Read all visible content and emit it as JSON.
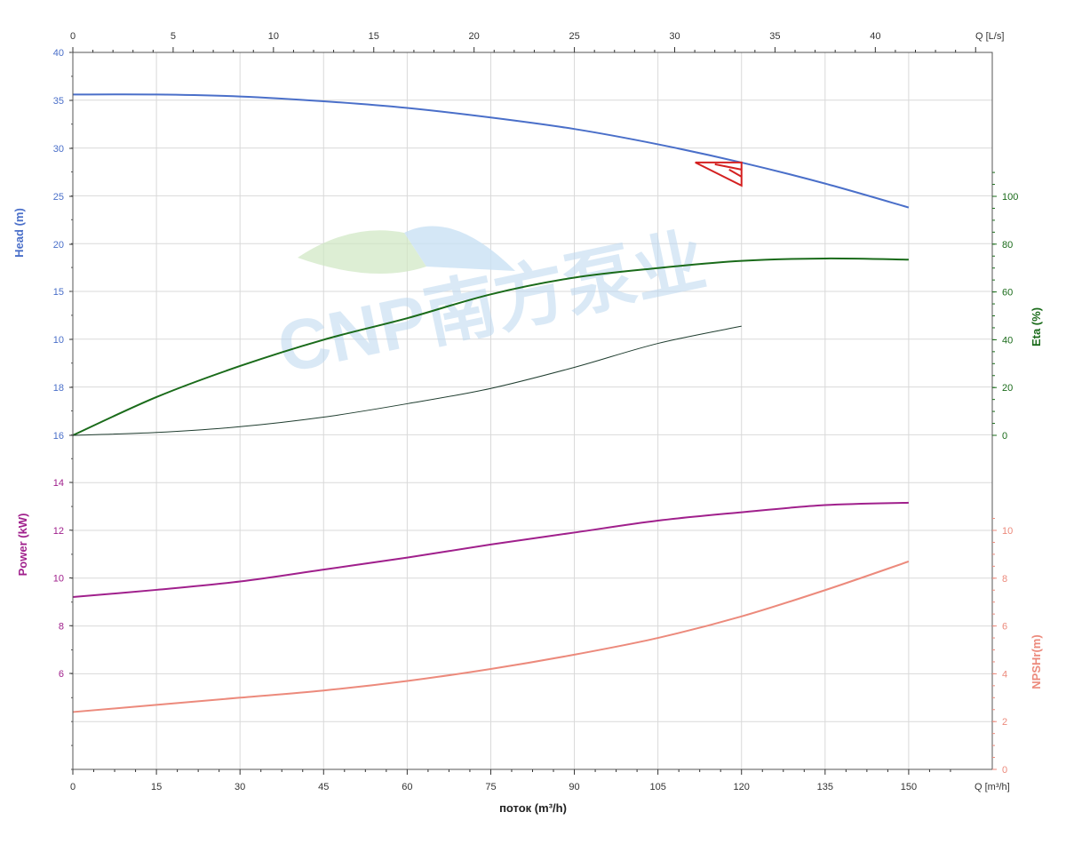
{
  "chart_data": {
    "type": "line",
    "xlabel": "поток (m³/h)",
    "x_bottom": {
      "unit_label": "Q [m³/h]",
      "range": [
        0,
        165
      ],
      "ticks": [
        0,
        15,
        30,
        45,
        60,
        75,
        90,
        105,
        120,
        135,
        150
      ]
    },
    "x_top": {
      "unit_label": "Q [L/s]",
      "range": [
        0,
        45.83
      ],
      "ticks": [
        0,
        5,
        10,
        15,
        20,
        25,
        30,
        35,
        40
      ]
    },
    "left_axis_labels": {
      "head": "Head (m)",
      "power": "Power (kW)"
    },
    "right_axis_labels": {
      "eta": "Eta (%)",
      "npsh": "NPSHr(m)"
    },
    "head_ticks": [
      16,
      18,
      10,
      15,
      20,
      25,
      30,
      35,
      40
    ],
    "power_ticks": [
      6,
      8,
      10,
      12,
      14
    ],
    "eta_ticks": [
      0,
      20,
      40,
      60,
      80,
      100
    ],
    "npsh_ticks": [
      0,
      2,
      4,
      6,
      8,
      10
    ],
    "colors": {
      "head": "#4a6fc9",
      "eta": "#1a6b1a",
      "system": "#1f3d2f",
      "power": "#a0208c",
      "npsh": "#ec8a7c",
      "duty_point": "#d42020",
      "grid": "#d9d9d9",
      "watermark": "#bcd8ef"
    },
    "watermark_text": "CNP南方泵业",
    "series": [
      {
        "name": "Head",
        "axis": "head",
        "x": [
          0,
          15,
          30,
          45,
          60,
          75,
          90,
          105,
          120,
          135,
          150
        ],
        "values": [
          35.6,
          35.6,
          35.4,
          34.9,
          34.2,
          33.2,
          32.0,
          30.4,
          28.5,
          26.3,
          23.8
        ]
      },
      {
        "name": "Eta",
        "axis": "eta",
        "x": [
          0,
          15,
          30,
          45,
          60,
          75,
          90,
          105,
          120,
          135,
          150
        ],
        "values": [
          0,
          16,
          29,
          40,
          49,
          59,
          66,
          70,
          73,
          74,
          73.5
        ]
      },
      {
        "name": "System",
        "axis": "head",
        "x": [
          0,
          15,
          30,
          45,
          60,
          75,
          90,
          105,
          120
        ],
        "values": [
          0,
          0.3,
          0.9,
          1.9,
          3.3,
          4.9,
          7.1,
          9.6,
          11.4
        ]
      },
      {
        "name": "Power",
        "axis": "power",
        "x": [
          0,
          15,
          30,
          45,
          60,
          75,
          90,
          105,
          120,
          135,
          150
        ],
        "values": [
          9.2,
          9.5,
          9.85,
          10.35,
          10.85,
          11.4,
          11.9,
          12.4,
          12.75,
          13.05,
          13.15
        ]
      },
      {
        "name": "NPSHr",
        "axis": "npsh",
        "x": [
          0,
          15,
          30,
          45,
          60,
          75,
          90,
          105,
          120,
          135,
          150
        ],
        "values": [
          2.4,
          2.7,
          3.0,
          3.3,
          3.7,
          4.2,
          4.8,
          5.5,
          6.4,
          7.5,
          8.7
        ]
      }
    ],
    "duty_point": {
      "x": 120,
      "head": 28.5
    }
  }
}
